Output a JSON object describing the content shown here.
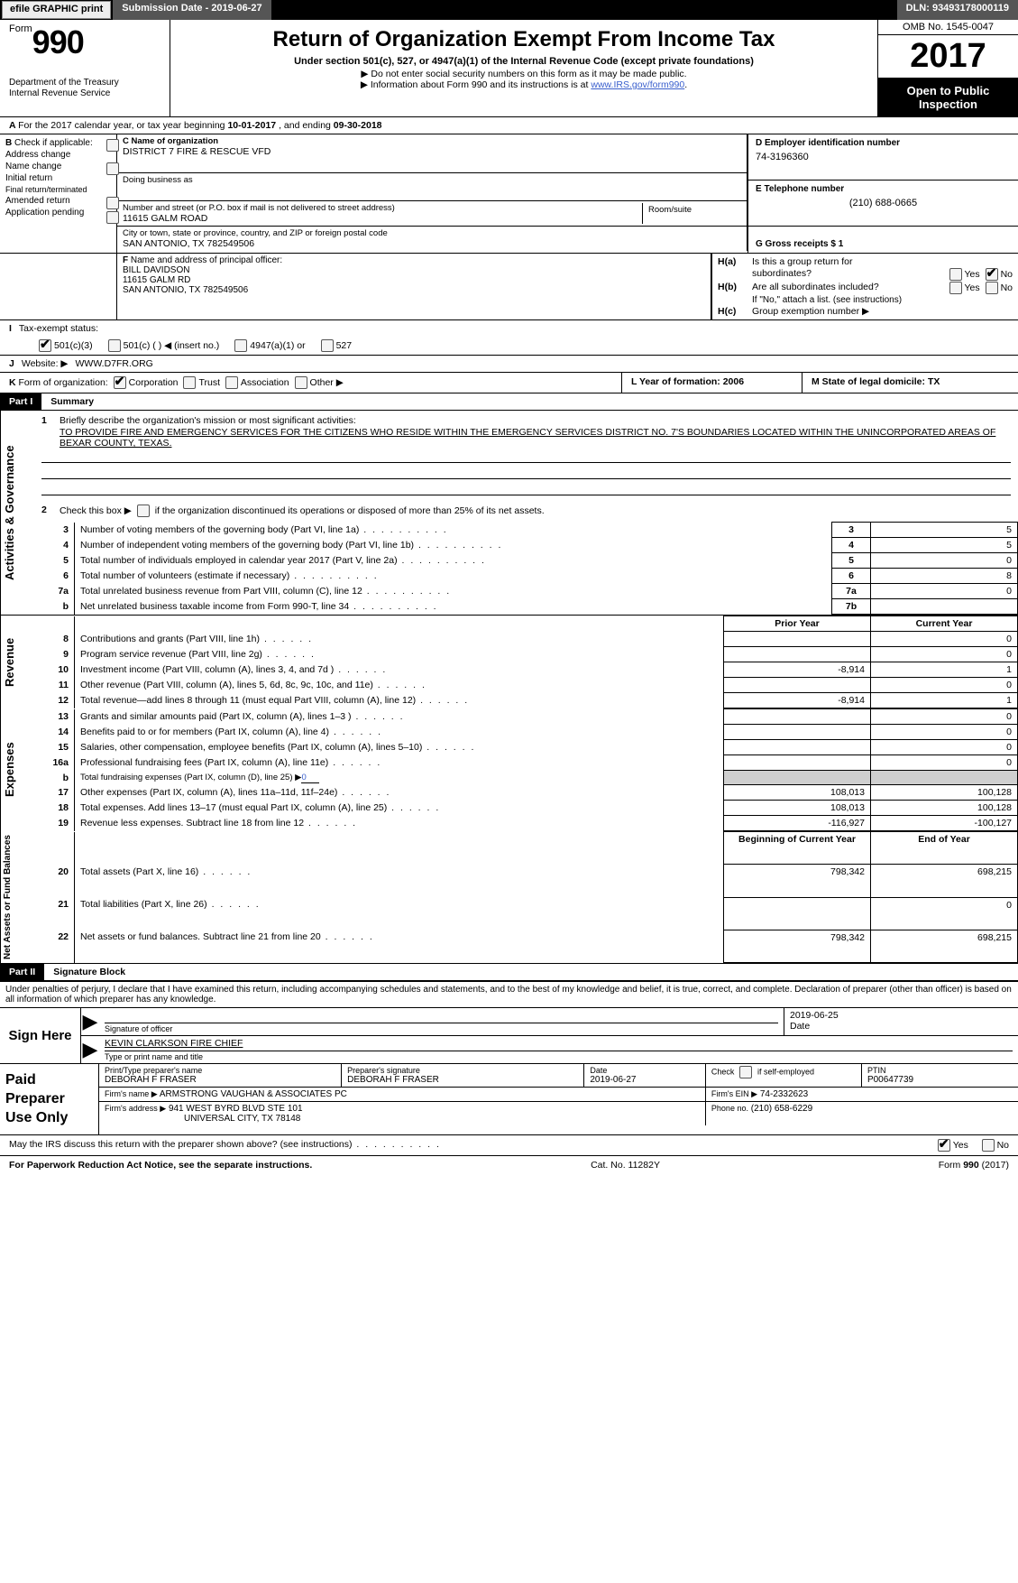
{
  "topbar": {
    "efile": "efile GRAPHIC print",
    "submission": "Submission Date - 2019-06-27",
    "dln": "DLN: 93493178000119"
  },
  "header": {
    "form_prefix": "Form",
    "form_number": "990",
    "title": "Return of Organization Exempt From Income Tax",
    "subtitle": "Under section 501(c), 527, or 4947(a)(1) of the Internal Revenue Code (except private foundations)",
    "note1": "▶ Do not enter social security numbers on this form as it may be made public.",
    "note2_pre": "▶ Information about Form 990 and its instructions is at ",
    "note2_link": "www.IRS.gov/form990",
    "dept1": "Department of the Treasury",
    "dept2": "Internal Revenue Service",
    "omb": "OMB No. 1545-0047",
    "year": "2017",
    "open1": "Open to Public",
    "open2": "Inspection"
  },
  "rowA": {
    "label": "A",
    "text_pre": "For the 2017 calendar year, or tax year beginning ",
    "begin": "10-01-2017",
    "mid": "  , and ending ",
    "end": "09-30-2018"
  },
  "colB": {
    "label": "B",
    "check_label": "Check if applicable:",
    "items": [
      "Address change",
      "Name change",
      "Initial return",
      "Final return/terminated",
      "Amended return",
      "Application pending"
    ]
  },
  "colC": {
    "name_label": "C Name of organization",
    "name": "DISTRICT 7 FIRE & RESCUE VFD",
    "dba_label": "Doing business as",
    "dba": "",
    "street_label": "Number and street (or P.O. box if mail is not delivered to street address)",
    "street": "11615 GALM ROAD",
    "room_label": "Room/suite",
    "room": "",
    "city_label": "City or town, state or province, country, and ZIP or foreign postal code",
    "city": "SAN ANTONIO, TX  782549506"
  },
  "colD": {
    "d_label": "D Employer identification number",
    "d_val": "74-3196360",
    "e_label": "E Telephone number",
    "e_val": "(210) 688-0665",
    "g_label": "G Gross receipts $ 1"
  },
  "rowF": {
    "label": "F",
    "text": "Name and address of principal officer:",
    "line1": "BILL DAVIDSON",
    "line2": "11615 GALM RD",
    "line3": "SAN ANTONIO, TX  782549506"
  },
  "rowH": {
    "ha_label": "H(a)",
    "ha_text": "Is this a group return for",
    "ha_text2": "subordinates?",
    "hb_label": "H(b)",
    "hb_text": "Are all subordinates included?",
    "hb_note": "If \"No,\" attach a list. (see instructions)",
    "hc_label": "H(c)",
    "hc_text": "Group exemption number ▶",
    "yes": "Yes",
    "no": "No"
  },
  "rowI": {
    "label": "I",
    "text": "Tax-exempt status:",
    "opts": [
      "501(c)(3)",
      "501(c) (  ) ◀ (insert no.)",
      "4947(a)(1) or",
      "527"
    ]
  },
  "rowJ": {
    "label": "J",
    "text": "Website: ▶",
    "val": "WWW.D7FR.ORG"
  },
  "rowK": {
    "label": "K",
    "text": "Form of organization:",
    "opts": [
      "Corporation",
      "Trust",
      "Association",
      "Other ▶"
    ]
  },
  "rowL": {
    "label": "L Year of formation: 2006"
  },
  "rowM": {
    "label": "M State of legal domicile: TX"
  },
  "partI": {
    "tag": "Part I",
    "title": "Summary"
  },
  "summary": {
    "r1_label": "1",
    "r1_text": "Briefly describe the organization's mission or most significant activities:",
    "r1_mission": "TO PROVIDE FIRE AND EMERGENCY SERVICES FOR THE CITIZENS WHO RESIDE WITHIN THE EMERGENCY SERVICES DISTRICT NO. 7'S BOUNDARIES LOCATED WITHIN THE UNINCORPORATED AREAS OF BEXAR COUNTY, TEXAS.",
    "r2_label": "2",
    "r2_text": "Check this box ▶   if the organization discontinued its operations or disposed of more than 25% of its net assets.",
    "side_gov": "Activities & Governance",
    "side_rev": "Revenue",
    "side_exp": "Expenses",
    "side_net": "Net Assets or Fund Balances",
    "hdr_prior": "Prior Year",
    "hdr_current": "Current Year",
    "hdr_begin": "Beginning of Current Year",
    "hdr_end": "End of Year"
  },
  "gov_rows": [
    {
      "n": "3",
      "d": "Number of voting members of the governing body (Part VI, line 1a)",
      "box": "3",
      "v": "5"
    },
    {
      "n": "4",
      "d": "Number of independent voting members of the governing body (Part VI, line 1b)",
      "box": "4",
      "v": "5"
    },
    {
      "n": "5",
      "d": "Total number of individuals employed in calendar year 2017 (Part V, line 2a)",
      "box": "5",
      "v": "0"
    },
    {
      "n": "6",
      "d": "Total number of volunteers (estimate if necessary)",
      "box": "6",
      "v": "8"
    },
    {
      "n": "7a",
      "d": "Total unrelated business revenue from Part VIII, column (C), line 12",
      "box": "7a",
      "v": "0"
    },
    {
      "n": "b",
      "d": "Net unrelated business taxable income from Form 990-T, line 34",
      "box": "7b",
      "v": ""
    }
  ],
  "rev_rows": [
    {
      "n": "8",
      "d": "Contributions and grants (Part VIII, line 1h)",
      "p": "",
      "c": "0"
    },
    {
      "n": "9",
      "d": "Program service revenue (Part VIII, line 2g)",
      "p": "",
      "c": "0"
    },
    {
      "n": "10",
      "d": "Investment income (Part VIII, column (A), lines 3, 4, and 7d )",
      "p": "-8,914",
      "c": "1"
    },
    {
      "n": "11",
      "d": "Other revenue (Part VIII, column (A), lines 5, 6d, 8c, 9c, 10c, and 11e)",
      "p": "",
      "c": "0"
    },
    {
      "n": "12",
      "d": "Total revenue—add lines 8 through 11 (must equal Part VIII, column (A), line 12)",
      "p": "-8,914",
      "c": "1"
    }
  ],
  "exp_rows": [
    {
      "n": "13",
      "d": "Grants and similar amounts paid (Part IX, column (A), lines 1–3 )",
      "p": "",
      "c": "0"
    },
    {
      "n": "14",
      "d": "Benefits paid to or for members (Part IX, column (A), line 4)",
      "p": "",
      "c": "0"
    },
    {
      "n": "15",
      "d": "Salaries, other compensation, employee benefits (Part IX, column (A), lines 5–10)",
      "p": "",
      "c": "0"
    },
    {
      "n": "16a",
      "d": "Professional fundraising fees (Part IX, column (A), line 11e)",
      "p": "",
      "c": "0"
    }
  ],
  "exp_b": {
    "n": "b",
    "d": "Total fundraising expenses (Part IX, column (D), line 25) ▶",
    "v": "0"
  },
  "exp_rows2": [
    {
      "n": "17",
      "d": "Other expenses (Part IX, column (A), lines 11a–11d, 11f–24e)",
      "p": "108,013",
      "c": "100,128"
    },
    {
      "n": "18",
      "d": "Total expenses. Add lines 13–17 (must equal Part IX, column (A), line 25)",
      "p": "108,013",
      "c": "100,128"
    },
    {
      "n": "19",
      "d": "Revenue less expenses. Subtract line 18 from line 12",
      "p": "-116,927",
      "c": "-100,127"
    }
  ],
  "net_rows": [
    {
      "n": "20",
      "d": "Total assets (Part X, line 16)",
      "p": "798,342",
      "c": "698,215"
    },
    {
      "n": "21",
      "d": "Total liabilities (Part X, line 26)",
      "p": "",
      "c": "0"
    },
    {
      "n": "22",
      "d": "Net assets or fund balances. Subtract line 21 from line 20",
      "p": "798,342",
      "c": "698,215"
    }
  ],
  "partII": {
    "tag": "Part II",
    "title": "Signature Block"
  },
  "sig": {
    "declaration": "Under penalties of perjury, I declare that I have examined this return, including accompanying schedules and statements, and to the best of my knowledge and belief, it is true, correct, and complete. Declaration of preparer (other than officer) is based on all information of which preparer has any knowledge.",
    "sign_here": "Sign Here",
    "sig_officer": "Signature of officer",
    "date_label": "Date",
    "date_val": "2019-06-25",
    "name_val": "KEVIN CLARKSON  FIRE CHIEF",
    "name_label": "Type or print name and title"
  },
  "prep": {
    "label1": "Paid",
    "label2": "Preparer",
    "label3": "Use Only",
    "r1": {
      "c1l": "Print/Type preparer's name",
      "c1v": "DEBORAH F FRASER",
      "c2l": "Preparer's signature",
      "c2v": "DEBORAH F FRASER",
      "c3l": "Date",
      "c3v": "2019-06-27",
      "c4l": "Check",
      "c4v": "if self-employed",
      "c5l": "PTIN",
      "c5v": "P00647739"
    },
    "r2": {
      "l": "Firm's name    ▶",
      "v": "ARMSTRONG VAUGHAN & ASSOCIATES PC",
      "r_l": "Firm's EIN ▶",
      "r_v": "74-2332623"
    },
    "r3": {
      "l": "Firm's address ▶",
      "v1": "941 WEST BYRD BLVD STE 101",
      "v2": "UNIVERSAL CITY, TX  78148",
      "r_l": "Phone no.",
      "r_v": "(210) 658-6229"
    }
  },
  "footer": {
    "discuss": "May the IRS discuss this return with the preparer shown above? (see instructions)",
    "yes": "Yes",
    "no": "No",
    "pra": "For Paperwork Reduction Act Notice, see the separate instructions.",
    "cat": "Cat. No. 11282Y",
    "form": "Form 990 (2017)"
  }
}
